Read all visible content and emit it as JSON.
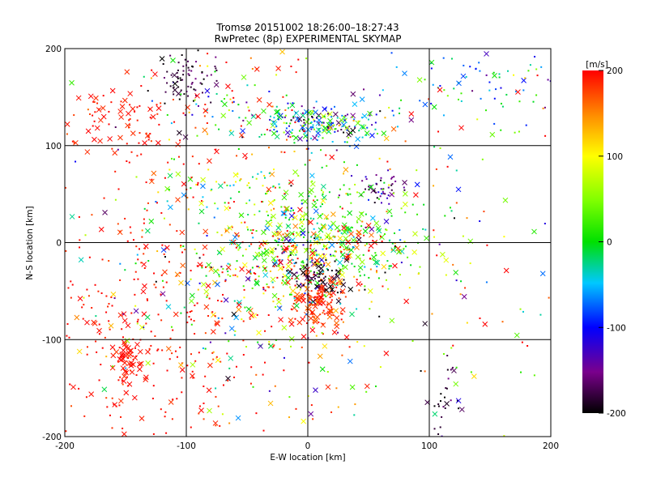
{
  "chart_data": {
    "type": "scatter",
    "title": "Tromsø 20151002 18:26:00–18:27:43",
    "subtitle": "RwPretec (8p) EXPERIMENTAL SKYMAP",
    "xlabel": "E-W location [km]",
    "ylabel": "N-S location [km]",
    "xlim": [
      -200,
      200
    ],
    "ylim": [
      -200,
      200
    ],
    "grid": true,
    "xticks": [
      "-200",
      "-100",
      "0",
      "100",
      "200"
    ],
    "yticks": [
      "-200",
      "-100",
      "0",
      "100",
      "200"
    ],
    "colorbar": {
      "label": "[m/s]",
      "range": [
        -200,
        200
      ],
      "ticks": [
        "200",
        "100",
        "0",
        "-100",
        "-200"
      ],
      "colormap": "rainbow: black(-200) - purple - blue(-100) - cyan - green(0) - yellow(100) - orange - red(200)"
    },
    "markers": {
      "dot": "small points (most detections)",
      "cross": "x markers"
    },
    "clusters": [
      {
        "cx": -140,
        "cy": -100,
        "sx": 50,
        "sy": 60,
        "n": 220,
        "vmean": 195,
        "vsd": 8,
        "xfrac": 0.15
      },
      {
        "cx": -150,
        "cy": -125,
        "sx": 10,
        "sy": 18,
        "n": 40,
        "vmean": 195,
        "vsd": 5,
        "xfrac": 0.9
      },
      {
        "cx": -155,
        "cy": 125,
        "sx": 25,
        "sy": 15,
        "n": 70,
        "vmean": 190,
        "vsd": 10,
        "xfrac": 0.4
      },
      {
        "cx": -100,
        "cy": 170,
        "sx": 10,
        "sy": 12,
        "n": 70,
        "vmean": -180,
        "vsd": 20,
        "xfrac": 0.05
      },
      {
        "cx": -75,
        "cy": 145,
        "sx": 25,
        "sy": 25,
        "n": 60,
        "vmean": 40,
        "vsd": 120,
        "xfrac": 0.2
      },
      {
        "cx": 10,
        "cy": 122,
        "sx": 25,
        "sy": 10,
        "n": 220,
        "vmean": -60,
        "vsd": 80,
        "xfrac": 0.25
      },
      {
        "cx": 60,
        "cy": 55,
        "sx": 10,
        "sy": 8,
        "n": 45,
        "vmean": -160,
        "vsd": 30,
        "xfrac": 0.05
      },
      {
        "cx": 20,
        "cy": 15,
        "sx": 35,
        "sy": 25,
        "n": 160,
        "vmean": 10,
        "vsd": 25,
        "xfrac": 0.3
      },
      {
        "cx": 5,
        "cy": -10,
        "sx": 40,
        "sy": 20,
        "n": 320,
        "vmean": 60,
        "vsd": 120,
        "xfrac": 0.35
      },
      {
        "cx": 10,
        "cy": -60,
        "sx": 12,
        "sy": 15,
        "n": 150,
        "vmean": 185,
        "vsd": 20,
        "xfrac": 0.4
      },
      {
        "cx": 10,
        "cy": -38,
        "sx": 12,
        "sy": 10,
        "n": 60,
        "vmean": -190,
        "vsd": 15,
        "xfrac": 0.5
      },
      {
        "cx": -40,
        "cy": -40,
        "sx": 45,
        "sy": 45,
        "n": 160,
        "vmean": 20,
        "vsd": 110,
        "xfrac": 0.3
      },
      {
        "cx": -50,
        "cy": 60,
        "sx": 30,
        "sy": 15,
        "n": 60,
        "vmean": 30,
        "vsd": 60,
        "xfrac": 0.25
      },
      {
        "cx": 145,
        "cy": 160,
        "sx": 35,
        "sy": 25,
        "n": 80,
        "vmean": -50,
        "vsd": 60,
        "xfrac": 0.15
      },
      {
        "cx": 115,
        "cy": -160,
        "sx": 10,
        "sy": 20,
        "n": 30,
        "vmean": -185,
        "vsd": 20,
        "xfrac": 0.3
      },
      {
        "cx": 0,
        "cy": 0,
        "sx": 150,
        "sy": 150,
        "n": 520,
        "vmean": 80,
        "vsd": 130,
        "xfrac": 0.35
      },
      {
        "cx": -80,
        "cy": 0,
        "sx": 60,
        "sy": 110,
        "n": 200,
        "vmean": 190,
        "vsd": 15,
        "xfrac": 0.2
      }
    ]
  }
}
